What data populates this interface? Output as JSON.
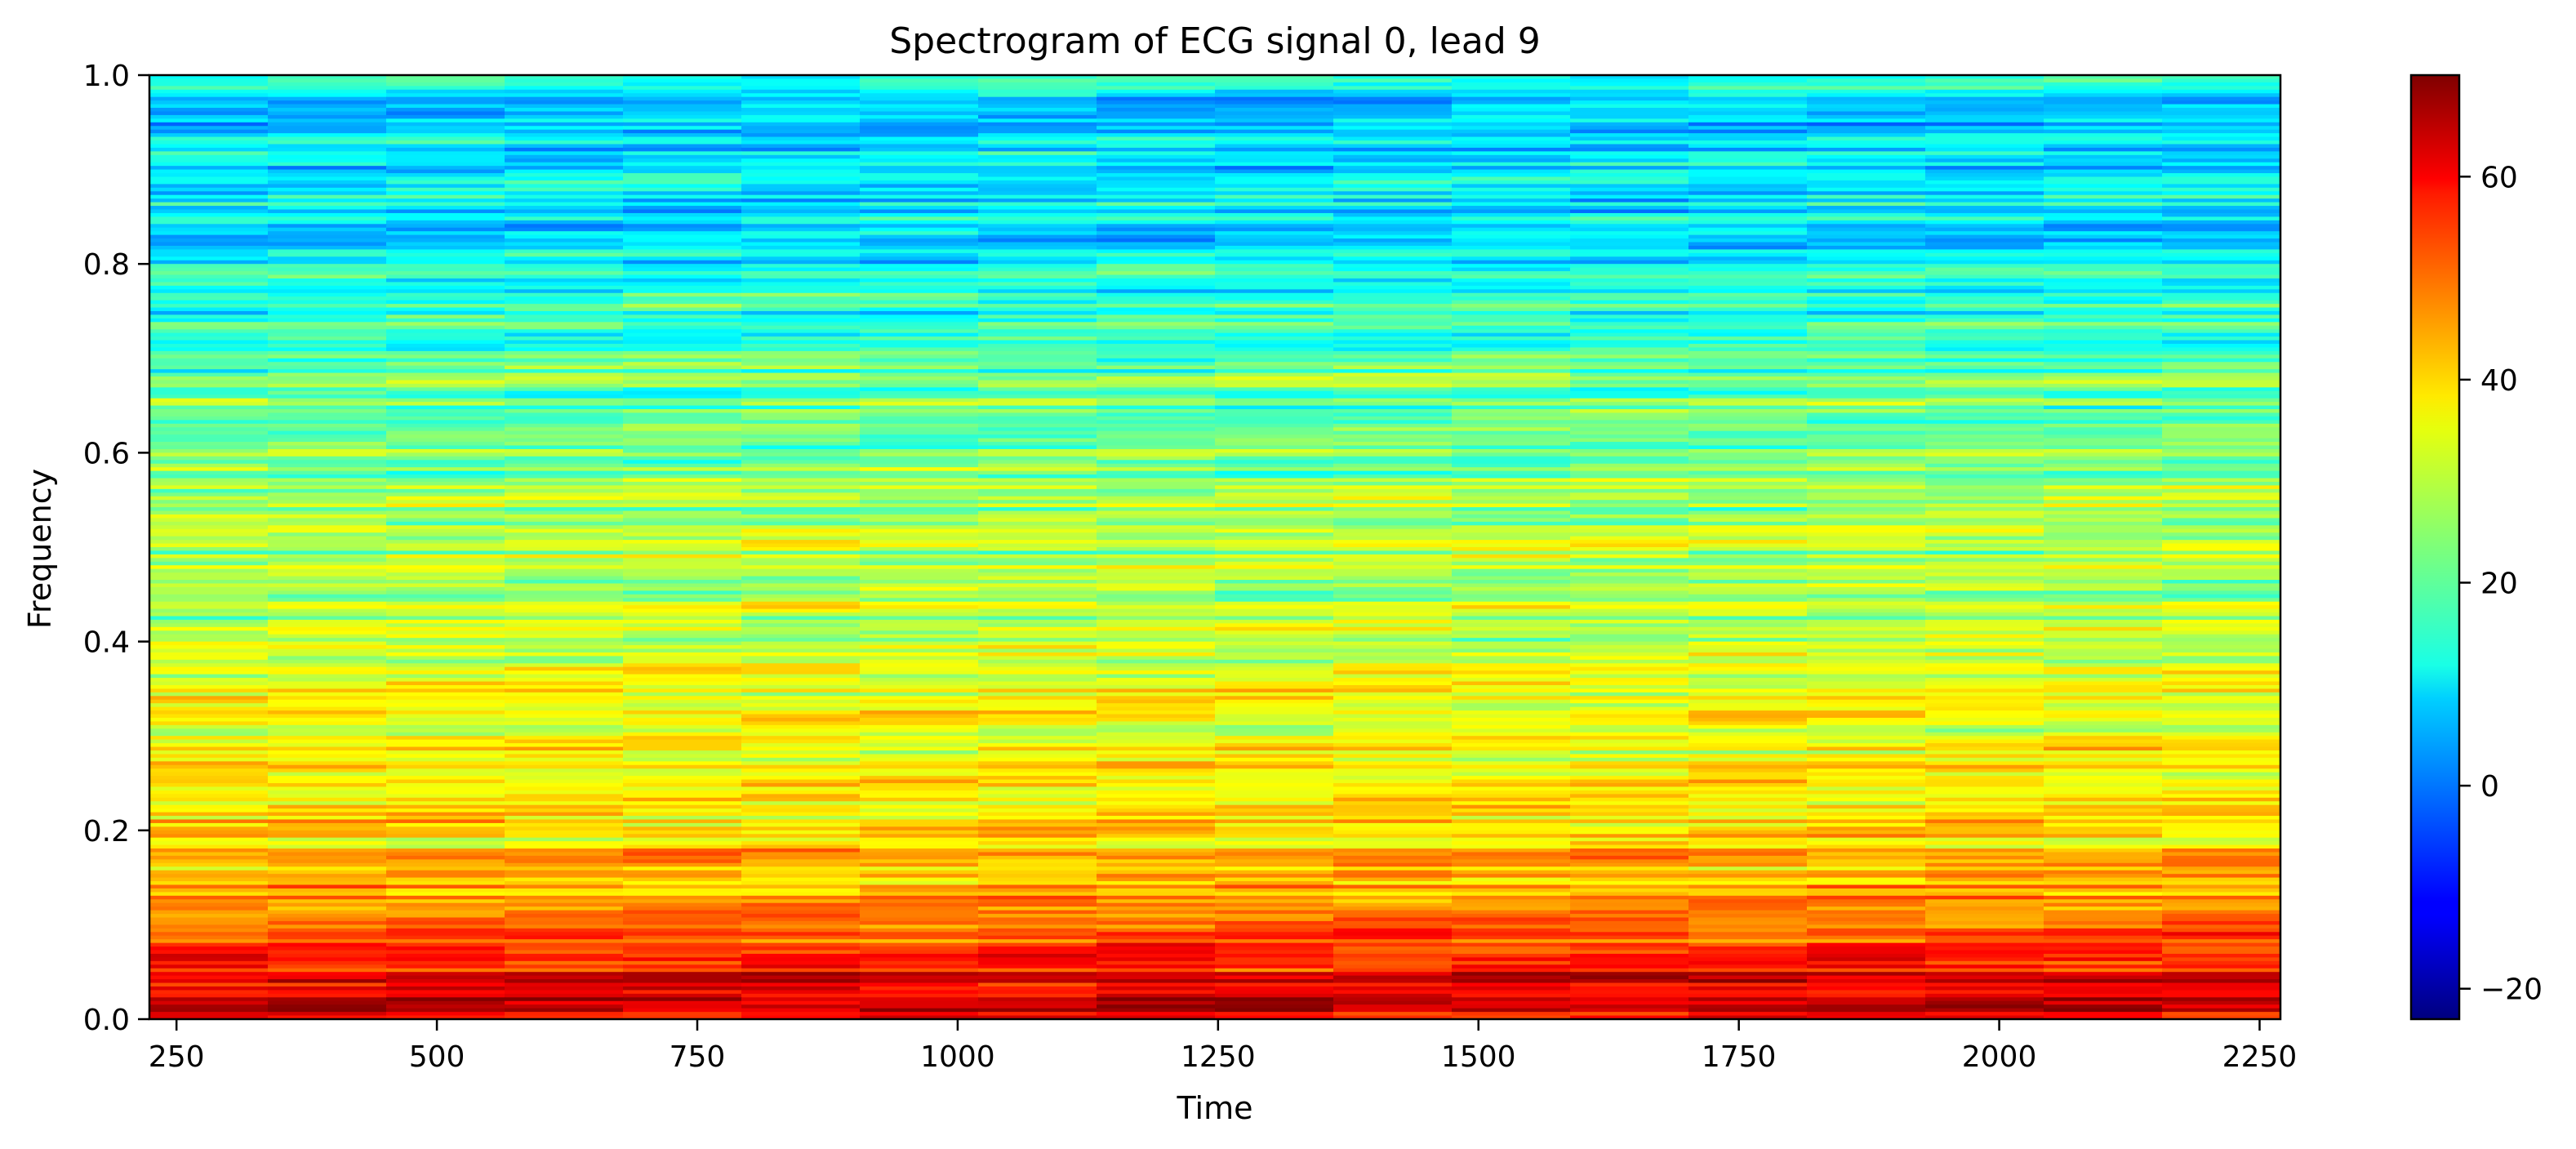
{
  "chart_data": {
    "type": "heatmap",
    "title": "Spectrogram of ECG signal 0, lead 9",
    "xlabel": "Time",
    "ylabel": "Frequency",
    "xlim": [
      224,
      2270
    ],
    "ylim": [
      0.0,
      1.0
    ],
    "x_ticks": [
      250,
      500,
      750,
      1000,
      1250,
      1500,
      1750,
      2000,
      2250
    ],
    "x_tick_labels": [
      "250",
      "500",
      "750",
      "1000",
      "1250",
      "1500",
      "1750",
      "2000",
      "2250"
    ],
    "y_ticks": [
      0.0,
      0.2,
      0.4,
      0.6,
      0.8,
      1.0
    ],
    "y_tick_labels": [
      "0.0",
      "0.2",
      "0.4",
      "0.6",
      "0.8",
      "1.0"
    ],
    "colormap": "jet",
    "colorbar": {
      "range": [
        -23,
        70
      ],
      "ticks": [
        -20,
        0,
        20,
        40,
        60
      ],
      "tick_labels": [
        "−20",
        "0",
        "20",
        "40",
        "60"
      ]
    },
    "power_profile": {
      "frequency": [
        0.0,
        0.02,
        0.05,
        0.08,
        0.12,
        0.16,
        0.2,
        0.25,
        0.3,
        0.35,
        0.4,
        0.45,
        0.5,
        0.55,
        0.6,
        0.65,
        0.7,
        0.75,
        0.8,
        0.85,
        0.9,
        0.95,
        1.0
      ],
      "power_db": [
        62,
        63,
        58,
        52,
        46,
        42,
        37,
        33,
        34,
        32,
        29,
        28,
        27,
        26,
        24,
        22,
        19,
        16,
        13,
        11,
        8,
        8,
        12
      ]
    },
    "grid": false,
    "legend": "none"
  }
}
